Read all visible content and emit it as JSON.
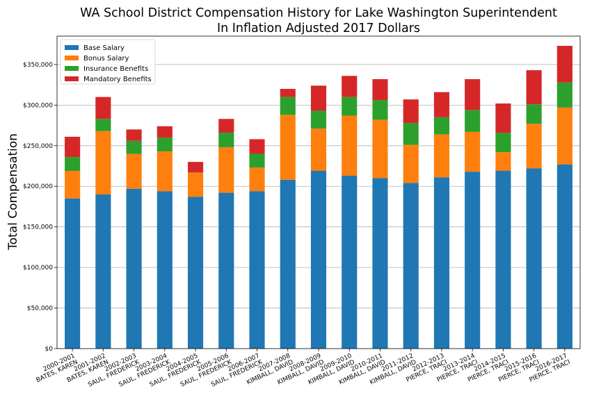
{
  "chart_data": {
    "type": "bar",
    "stacked": true,
    "title": "WA School District Compensation History for Lake Washington Superintendent",
    "subtitle": "In Inflation Adjusted 2017 Dollars",
    "xlabel": "",
    "ylabel": "Total Compensation",
    "ylim": [
      0,
      385000
    ],
    "yticks": [
      0,
      50000,
      100000,
      150000,
      200000,
      250000,
      300000,
      350000
    ],
    "ytick_labels": [
      "$0",
      "$50,000",
      "$100,000",
      "$150,000",
      "$200,000",
      "$250,000",
      "$300,000",
      "$350,000"
    ],
    "grid": "horizontal",
    "legend_position": "top-left",
    "categories": [
      [
        "2000-2001",
        "BATES, KAREN"
      ],
      [
        "2001-2002",
        "BATES, KAREN"
      ],
      [
        "2002-2003",
        "SAUL, FREDERICK"
      ],
      [
        "2003-2004",
        "SAUL, FREDERICK"
      ],
      [
        "2004-2005",
        "SAUL, FREDERICK"
      ],
      [
        "2005-2006",
        "SAUL, FREDERICK"
      ],
      [
        "2006-2007",
        "SAUL, FREDERICK"
      ],
      [
        "2007-2008",
        "KIMBALL, DAVID"
      ],
      [
        "2008-2009",
        "KIMBALL, DAVID"
      ],
      [
        "2009-2010",
        "KIMBALL, DAVID"
      ],
      [
        "2010-2011",
        "KIMBALL, DAVID"
      ],
      [
        "2011-2012",
        "KIMBALL, DAVID"
      ],
      [
        "2012-2013",
        "PIERCE, TRACI"
      ],
      [
        "2013-2014",
        "PIERCE, TRACI"
      ],
      [
        "2014-2015",
        "PIERCE, TRACI"
      ],
      [
        "2015-2016",
        "PIERCE, TRACI"
      ],
      [
        "2016-2017",
        "PIERCE, TRACI"
      ]
    ],
    "series": [
      {
        "name": "Base Salary",
        "color": "#1f77b4",
        "values": [
          185000,
          190000,
          197000,
          194000,
          187000,
          192000,
          194000,
          208000,
          219000,
          213000,
          210000,
          204000,
          211000,
          218000,
          219000,
          222000,
          227000
        ]
      },
      {
        "name": "Bonus Salary",
        "color": "#ff7f0e",
        "values": [
          34000,
          78000,
          43000,
          49000,
          30000,
          56000,
          29000,
          80000,
          52000,
          74000,
          72000,
          47000,
          53000,
          49000,
          23000,
          55000,
          70000
        ]
      },
      {
        "name": "Insurance Benefits",
        "color": "#2ca02c",
        "values": [
          17000,
          15000,
          16000,
          17000,
          0,
          18000,
          17000,
          22000,
          22000,
          23000,
          24000,
          27000,
          21000,
          27000,
          24000,
          24000,
          31000
        ]
      },
      {
        "name": "Mandatory Benefits",
        "color": "#d62728",
        "values": [
          25000,
          27000,
          14000,
          14000,
          13000,
          17000,
          18000,
          10000,
          31000,
          26000,
          26000,
          29000,
          31000,
          38000,
          36000,
          42000,
          45000
        ]
      }
    ]
  }
}
